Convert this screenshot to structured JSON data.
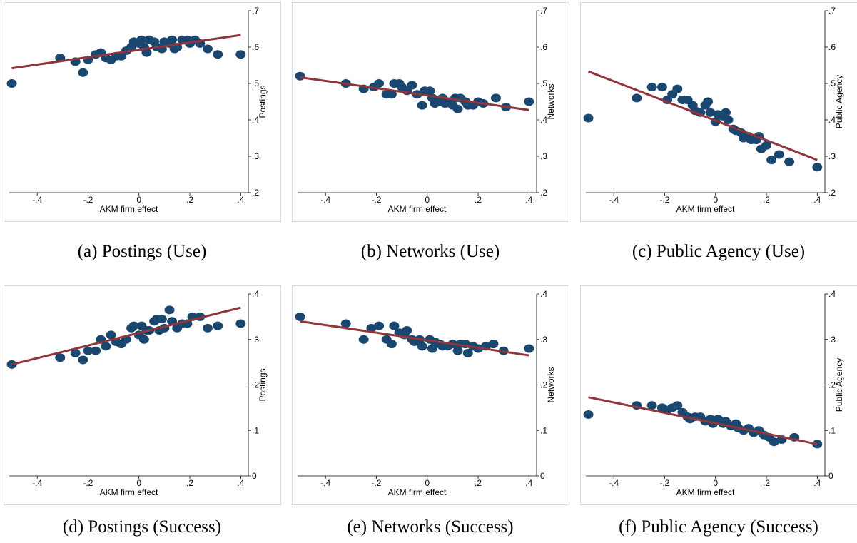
{
  "chart_data": [
    {
      "type": "scatter",
      "caption": "(a) Postings (Use)",
      "x_label": "AKM firm effect",
      "y_label": "Postings",
      "color": "#1a476f",
      "x": [
        -0.5,
        -0.31,
        -0.25,
        -0.22,
        -0.2,
        -0.17,
        -0.15,
        -0.13,
        -0.11,
        -0.09,
        -0.07,
        -0.05,
        -0.03,
        -0.02,
        0,
        0.01,
        0.02,
        0.03,
        0.04,
        0.06,
        0.07,
        0.09,
        0.1,
        0.12,
        0.13,
        0.14,
        0.15,
        0.17,
        0.19,
        0.2,
        0.22,
        0.24,
        0.27,
        0.31,
        0.4
      ],
      "y": [
        0.5,
        0.57,
        0.56,
        0.53,
        0.565,
        0.58,
        0.585,
        0.57,
        0.565,
        0.575,
        0.575,
        0.59,
        0.6,
        0.615,
        0.61,
        0.62,
        0.6,
        0.585,
        0.62,
        0.615,
        0.6,
        0.595,
        0.615,
        0.61,
        0.62,
        0.595,
        0.6,
        0.62,
        0.62,
        0.61,
        0.62,
        0.61,
        0.595,
        0.58,
        0.58
      ],
      "fit": {
        "x": [
          -0.5,
          0.4
        ],
        "y": [
          0.542,
          0.633
        ],
        "color": "#90353b"
      },
      "xlim": [
        -0.51,
        0.43
      ],
      "ylim": [
        0.2,
        0.7
      ],
      "xticks": [
        {
          "value": -0.4,
          "label": "-.4"
        },
        {
          "value": -0.2,
          "label": "-.2"
        },
        0,
        {
          "value": 0.2,
          "label": ".2"
        },
        {
          "value": 0.4,
          "label": ".4"
        }
      ],
      "yticks": [
        {
          "value": 0.2,
          "label": ".2"
        },
        {
          "value": 0.3,
          "label": ".3"
        },
        {
          "value": 0.4,
          "label": ".4"
        },
        {
          "value": 0.5,
          "label": ".5"
        },
        {
          "value": 0.6,
          "label": ".6"
        },
        {
          "value": 0.7,
          "label": ".7"
        }
      ]
    },
    {
      "type": "scatter",
      "caption": "(b) Networks (Use)",
      "x_label": "AKM firm effect",
      "y_label": "Networks",
      "color": "#1a476f",
      "x": [
        -0.5,
        -0.32,
        -0.25,
        -0.21,
        -0.19,
        -0.16,
        -0.14,
        -0.13,
        -0.11,
        -0.1,
        -0.08,
        -0.06,
        -0.04,
        -0.02,
        -0.01,
        0.01,
        0.02,
        0.03,
        0.05,
        0.06,
        0.07,
        0.09,
        0.1,
        0.11,
        0.12,
        0.13,
        0.15,
        0.16,
        0.18,
        0.2,
        0.22,
        0.27,
        0.31,
        0.4
      ],
      "y": [
        0.52,
        0.5,
        0.485,
        0.49,
        0.5,
        0.47,
        0.47,
        0.5,
        0.5,
        0.49,
        0.48,
        0.495,
        0.47,
        0.44,
        0.48,
        0.48,
        0.46,
        0.445,
        0.45,
        0.46,
        0.445,
        0.45,
        0.44,
        0.46,
        0.43,
        0.46,
        0.45,
        0.44,
        0.44,
        0.45,
        0.445,
        0.46,
        0.435,
        0.45
      ],
      "fit": {
        "x": [
          -0.5,
          0.4
        ],
        "y": [
          0.517,
          0.427
        ],
        "color": "#90353b"
      },
      "xlim": [
        -0.51,
        0.43
      ],
      "ylim": [
        0.2,
        0.7
      ],
      "xticks": [
        {
          "value": -0.4,
          "label": "-.4"
        },
        {
          "value": -0.2,
          "label": "-.2"
        },
        0,
        {
          "value": 0.2,
          "label": ".2"
        },
        {
          "value": 0.4,
          "label": ".4"
        }
      ],
      "yticks": [
        {
          "value": 0.2,
          "label": ".2"
        },
        {
          "value": 0.3,
          "label": ".3"
        },
        {
          "value": 0.4,
          "label": ".4"
        },
        {
          "value": 0.5,
          "label": ".5"
        },
        {
          "value": 0.6,
          "label": ".6"
        },
        {
          "value": 0.7,
          "label": ".7"
        }
      ]
    },
    {
      "type": "scatter",
      "caption": "(c) Public Agency (Use)",
      "x_label": "AKM firm effect",
      "y_label": "Public Agency",
      "color": "#1a476f",
      "x": [
        -0.5,
        -0.31,
        -0.25,
        -0.21,
        -0.19,
        -0.17,
        -0.15,
        -0.13,
        -0.11,
        -0.09,
        -0.08,
        -0.06,
        -0.04,
        -0.03,
        -0.02,
        0,
        0.01,
        0.03,
        0.04,
        0.05,
        0.07,
        0.08,
        0.1,
        0.11,
        0.13,
        0.14,
        0.16,
        0.17,
        0.18,
        0.2,
        0.22,
        0.25,
        0.29,
        0.4
      ],
      "y": [
        0.405,
        0.46,
        0.49,
        0.49,
        0.455,
        0.47,
        0.485,
        0.455,
        0.455,
        0.44,
        0.425,
        0.42,
        0.44,
        0.45,
        0.42,
        0.395,
        0.415,
        0.41,
        0.42,
        0.4,
        0.375,
        0.37,
        0.365,
        0.35,
        0.355,
        0.345,
        0.345,
        0.355,
        0.32,
        0.33,
        0.29,
        0.305,
        0.285,
        0.27
      ],
      "fit": {
        "x": [
          -0.5,
          0.4
        ],
        "y": [
          0.533,
          0.29
        ],
        "color": "#90353b"
      },
      "xlim": [
        -0.51,
        0.43
      ],
      "ylim": [
        0.2,
        0.7
      ],
      "xticks": [
        {
          "value": -0.4,
          "label": "-.4"
        },
        {
          "value": -0.2,
          "label": "-.2"
        },
        0,
        {
          "value": 0.2,
          "label": ".2"
        },
        {
          "value": 0.4,
          "label": ".4"
        }
      ],
      "yticks": [
        {
          "value": 0.2,
          "label": ".2"
        },
        {
          "value": 0.3,
          "label": ".3"
        },
        {
          "value": 0.4,
          "label": ".4"
        },
        {
          "value": 0.5,
          "label": ".5"
        },
        {
          "value": 0.6,
          "label": ".6"
        },
        {
          "value": 0.7,
          "label": ".7"
        }
      ]
    },
    {
      "type": "scatter",
      "caption": "(d) Postings (Success)",
      "x_label": "AKM firm effect",
      "y_label": "Postings",
      "color": "#1a476f",
      "x": [
        -0.5,
        -0.31,
        -0.25,
        -0.22,
        -0.2,
        -0.17,
        -0.15,
        -0.13,
        -0.11,
        -0.09,
        -0.07,
        -0.05,
        -0.03,
        -0.02,
        0,
        0.01,
        0.02,
        0.03,
        0.04,
        0.06,
        0.07,
        0.08,
        0.09,
        0.1,
        0.12,
        0.13,
        0.15,
        0.17,
        0.19,
        0.21,
        0.24,
        0.27,
        0.31,
        0.4
      ],
      "y": [
        0.245,
        0.26,
        0.27,
        0.255,
        0.275,
        0.275,
        0.3,
        0.285,
        0.31,
        0.295,
        0.29,
        0.3,
        0.325,
        0.33,
        0.31,
        0.33,
        0.3,
        0.32,
        0.32,
        0.34,
        0.345,
        0.32,
        0.345,
        0.325,
        0.365,
        0.34,
        0.325,
        0.335,
        0.335,
        0.35,
        0.35,
        0.325,
        0.33,
        0.335
      ],
      "fit": {
        "x": [
          -0.5,
          0.4
        ],
        "y": [
          0.245,
          0.37
        ],
        "color": "#90353b"
      },
      "xlim": [
        -0.51,
        0.43
      ],
      "ylim": [
        0,
        0.4
      ],
      "xticks": [
        {
          "value": -0.4,
          "label": "-.4"
        },
        {
          "value": -0.2,
          "label": "-.2"
        },
        0,
        {
          "value": 0.2,
          "label": ".2"
        },
        {
          "value": 0.4,
          "label": ".4"
        }
      ],
      "yticks": [
        0,
        {
          "value": 0.1,
          "label": ".1"
        },
        {
          "value": 0.2,
          "label": ".2"
        },
        {
          "value": 0.3,
          "label": ".3"
        },
        {
          "value": 0.4,
          "label": ".4"
        }
      ]
    },
    {
      "type": "scatter",
      "caption": "(e) Networks (Success)",
      "x_label": "AKM firm effect",
      "y_label": "Networks",
      "color": "#1a476f",
      "x": [
        -0.5,
        -0.32,
        -0.25,
        -0.22,
        -0.19,
        -0.16,
        -0.14,
        -0.13,
        -0.11,
        -0.09,
        -0.08,
        -0.06,
        -0.05,
        -0.03,
        -0.02,
        0.01,
        0.02,
        0.03,
        0.05,
        0.06,
        0.08,
        0.1,
        0.12,
        0.13,
        0.15,
        0.16,
        0.18,
        0.2,
        0.23,
        0.26,
        0.3,
        0.4
      ],
      "y": [
        0.35,
        0.335,
        0.3,
        0.325,
        0.33,
        0.3,
        0.29,
        0.33,
        0.315,
        0.31,
        0.32,
        0.3,
        0.295,
        0.3,
        0.285,
        0.3,
        0.28,
        0.295,
        0.29,
        0.285,
        0.285,
        0.29,
        0.275,
        0.29,
        0.29,
        0.27,
        0.285,
        0.28,
        0.285,
        0.29,
        0.275,
        0.28
      ],
      "fit": {
        "x": [
          -0.5,
          0.4
        ],
        "y": [
          0.34,
          0.265
        ],
        "color": "#90353b"
      },
      "xlim": [
        -0.51,
        0.43
      ],
      "ylim": [
        0,
        0.4
      ],
      "xticks": [
        {
          "value": -0.4,
          "label": "-.4"
        },
        {
          "value": -0.2,
          "label": "-.2"
        },
        0,
        {
          "value": 0.2,
          "label": ".2"
        },
        {
          "value": 0.4,
          "label": ".4"
        }
      ],
      "yticks": [
        0,
        {
          "value": 0.1,
          "label": ".1"
        },
        {
          "value": 0.2,
          "label": ".2"
        },
        {
          "value": 0.3,
          "label": ".3"
        },
        {
          "value": 0.4,
          "label": ".4"
        }
      ]
    },
    {
      "type": "scatter",
      "caption": "(f) Public Agency (Success)",
      "x_label": "AKM firm effect",
      "y_label": "Public Agency",
      "color": "#1a476f",
      "x": [
        -0.5,
        -0.31,
        -0.25,
        -0.21,
        -0.19,
        -0.17,
        -0.15,
        -0.13,
        -0.11,
        -0.1,
        -0.08,
        -0.06,
        -0.04,
        -0.02,
        -0.01,
        0.01,
        0.03,
        0.04,
        0.06,
        0.08,
        0.09,
        0.11,
        0.13,
        0.15,
        0.17,
        0.19,
        0.21,
        0.23,
        0.26,
        0.31,
        0.4
      ],
      "y": [
        0.135,
        0.155,
        0.155,
        0.15,
        0.145,
        0.15,
        0.155,
        0.14,
        0.13,
        0.125,
        0.13,
        0.13,
        0.12,
        0.125,
        0.115,
        0.125,
        0.115,
        0.12,
        0.11,
        0.115,
        0.105,
        0.1,
        0.105,
        0.095,
        0.1,
        0.09,
        0.085,
        0.075,
        0.08,
        0.085,
        0.07
      ],
      "fit": {
        "x": [
          -0.5,
          0.4
        ],
        "y": [
          0.173,
          0.07
        ],
        "color": "#90353b"
      },
      "xlim": [
        -0.51,
        0.43
      ],
      "ylim": [
        0,
        0.4
      ],
      "xticks": [
        {
          "value": -0.4,
          "label": "-.4"
        },
        {
          "value": -0.2,
          "label": "-.2"
        },
        0,
        {
          "value": 0.2,
          "label": ".2"
        },
        {
          "value": 0.4,
          "label": ".4"
        }
      ],
      "yticks": [
        0,
        {
          "value": 0.1,
          "label": ".1"
        },
        {
          "value": 0.2,
          "label": ".2"
        },
        {
          "value": 0.3,
          "label": ".3"
        },
        {
          "value": 0.4,
          "label": ".4"
        }
      ]
    }
  ]
}
